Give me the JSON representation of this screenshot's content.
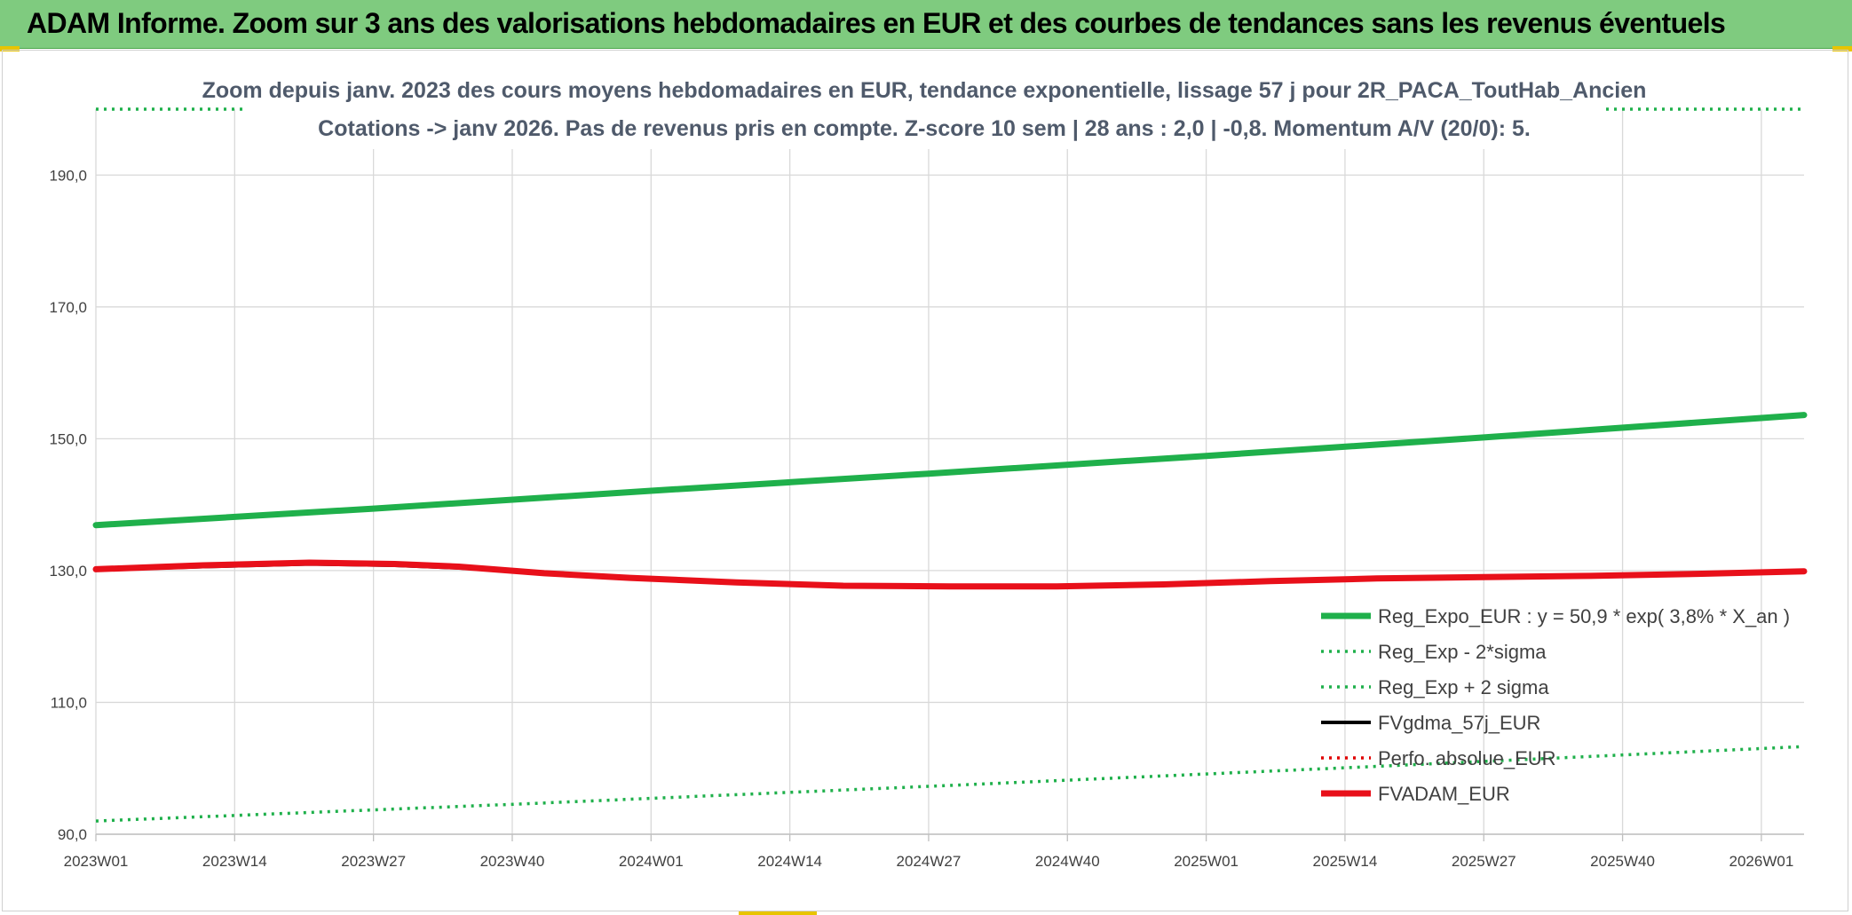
{
  "banner": {
    "title": "ADAM Informe. Zoom sur 3 ans des valorisations hebdomadaires en EUR et des courbes de tendances sans les revenus éventuels"
  },
  "colors": {
    "banner_bg": "#7fcb7f",
    "reg_expo": "#1fb04b",
    "sigma_band": "#1fb04b",
    "fvgdma": "#000000",
    "perfo": "#e00000",
    "fvadam": "#e8101a",
    "gridline": "#d9d9d9"
  },
  "chart_data": {
    "type": "line",
    "title_lines": [
      "Zoom depuis janv. 2023 des cours moyens hebdomadaires en EUR, tendance exponentielle, lissage 57 j pour 2R_PACA_ToutHab_Ancien",
      "Cotations -> janv 2026. Pas de revenus pris en compte. Z-score 10 sem | 28 ans : 2,0 | -0,8. Momentum A/V (20/0): 5."
    ],
    "x_ticks": [
      "2023W01",
      "2023W14",
      "2023W27",
      "2023W40",
      "2024W01",
      "2024W14",
      "2024W27",
      "2024W40",
      "2025W01",
      "2025W14",
      "2025W27",
      "2025W40",
      "2026W01"
    ],
    "x_range_weeks": [
      0,
      160
    ],
    "y_ticks": [
      "90,0",
      "110,0",
      "130,0",
      "150,0",
      "170,0",
      "190,0"
    ],
    "ylim": [
      90,
      200
    ],
    "grid": "vertical and horizontal",
    "legend_position": "bottom-right inside plot",
    "series": [
      {
        "name": "Reg_Expo_EUR : y = 50,9 * exp( 3,8% *  X_an )",
        "style": "solid-thick",
        "color": "#1fb04b",
        "points": [
          [
            0,
            136.9
          ],
          [
            26,
            139.4
          ],
          [
            52,
            142.1
          ],
          [
            78,
            144.7
          ],
          [
            104,
            147.4
          ],
          [
            130,
            150.2
          ],
          [
            160,
            153.6
          ]
        ]
      },
      {
        "name": "Reg_Exp - 2*sigma",
        "style": "dotted",
        "color": "#1fb04b",
        "points": [
          [
            0,
            92.0
          ],
          [
            40,
            94.6
          ],
          [
            80,
            97.4
          ],
          [
            120,
            100.3
          ],
          [
            160,
            103.3
          ]
        ]
      },
      {
        "name": "Reg_Exp + 2 sigma",
        "style": "dotted",
        "color": "#1fb04b",
        "points": [
          [
            0,
            200.0
          ],
          [
            160,
            200.0
          ]
        ]
      },
      {
        "name": "FVgdma_57j_EUR",
        "style": "solid",
        "color": "#000000",
        "points": [
          [
            0,
            130.1
          ],
          [
            10,
            130.6
          ],
          [
            20,
            131.0
          ],
          [
            28,
            130.8
          ],
          [
            34,
            130.4
          ],
          [
            42,
            129.6
          ],
          [
            50,
            128.9
          ],
          [
            60,
            128.2
          ],
          [
            70,
            127.8
          ],
          [
            80,
            127.6
          ],
          [
            90,
            127.6
          ],
          [
            100,
            127.9
          ],
          [
            110,
            128.4
          ],
          [
            120,
            128.8
          ],
          [
            130,
            129.0
          ],
          [
            140,
            129.2
          ],
          [
            150,
            129.5
          ],
          [
            160,
            129.9
          ]
        ]
      },
      {
        "name": "Perfo. absolue_EUR",
        "style": "dotted",
        "color": "#e00000",
        "points": []
      },
      {
        "name": "FVADAM_EUR",
        "style": "solid-thick",
        "color": "#e8101a",
        "points": [
          [
            0,
            130.2
          ],
          [
            10,
            130.8
          ],
          [
            20,
            131.2
          ],
          [
            28,
            131.0
          ],
          [
            34,
            130.6
          ],
          [
            42,
            129.6
          ],
          [
            50,
            128.9
          ],
          [
            60,
            128.2
          ],
          [
            70,
            127.7
          ],
          [
            80,
            127.6
          ],
          [
            90,
            127.6
          ],
          [
            100,
            127.9
          ],
          [
            110,
            128.4
          ],
          [
            120,
            128.8
          ],
          [
            130,
            129.0
          ],
          [
            140,
            129.2
          ],
          [
            150,
            129.5
          ],
          [
            160,
            129.9
          ]
        ]
      }
    ]
  }
}
